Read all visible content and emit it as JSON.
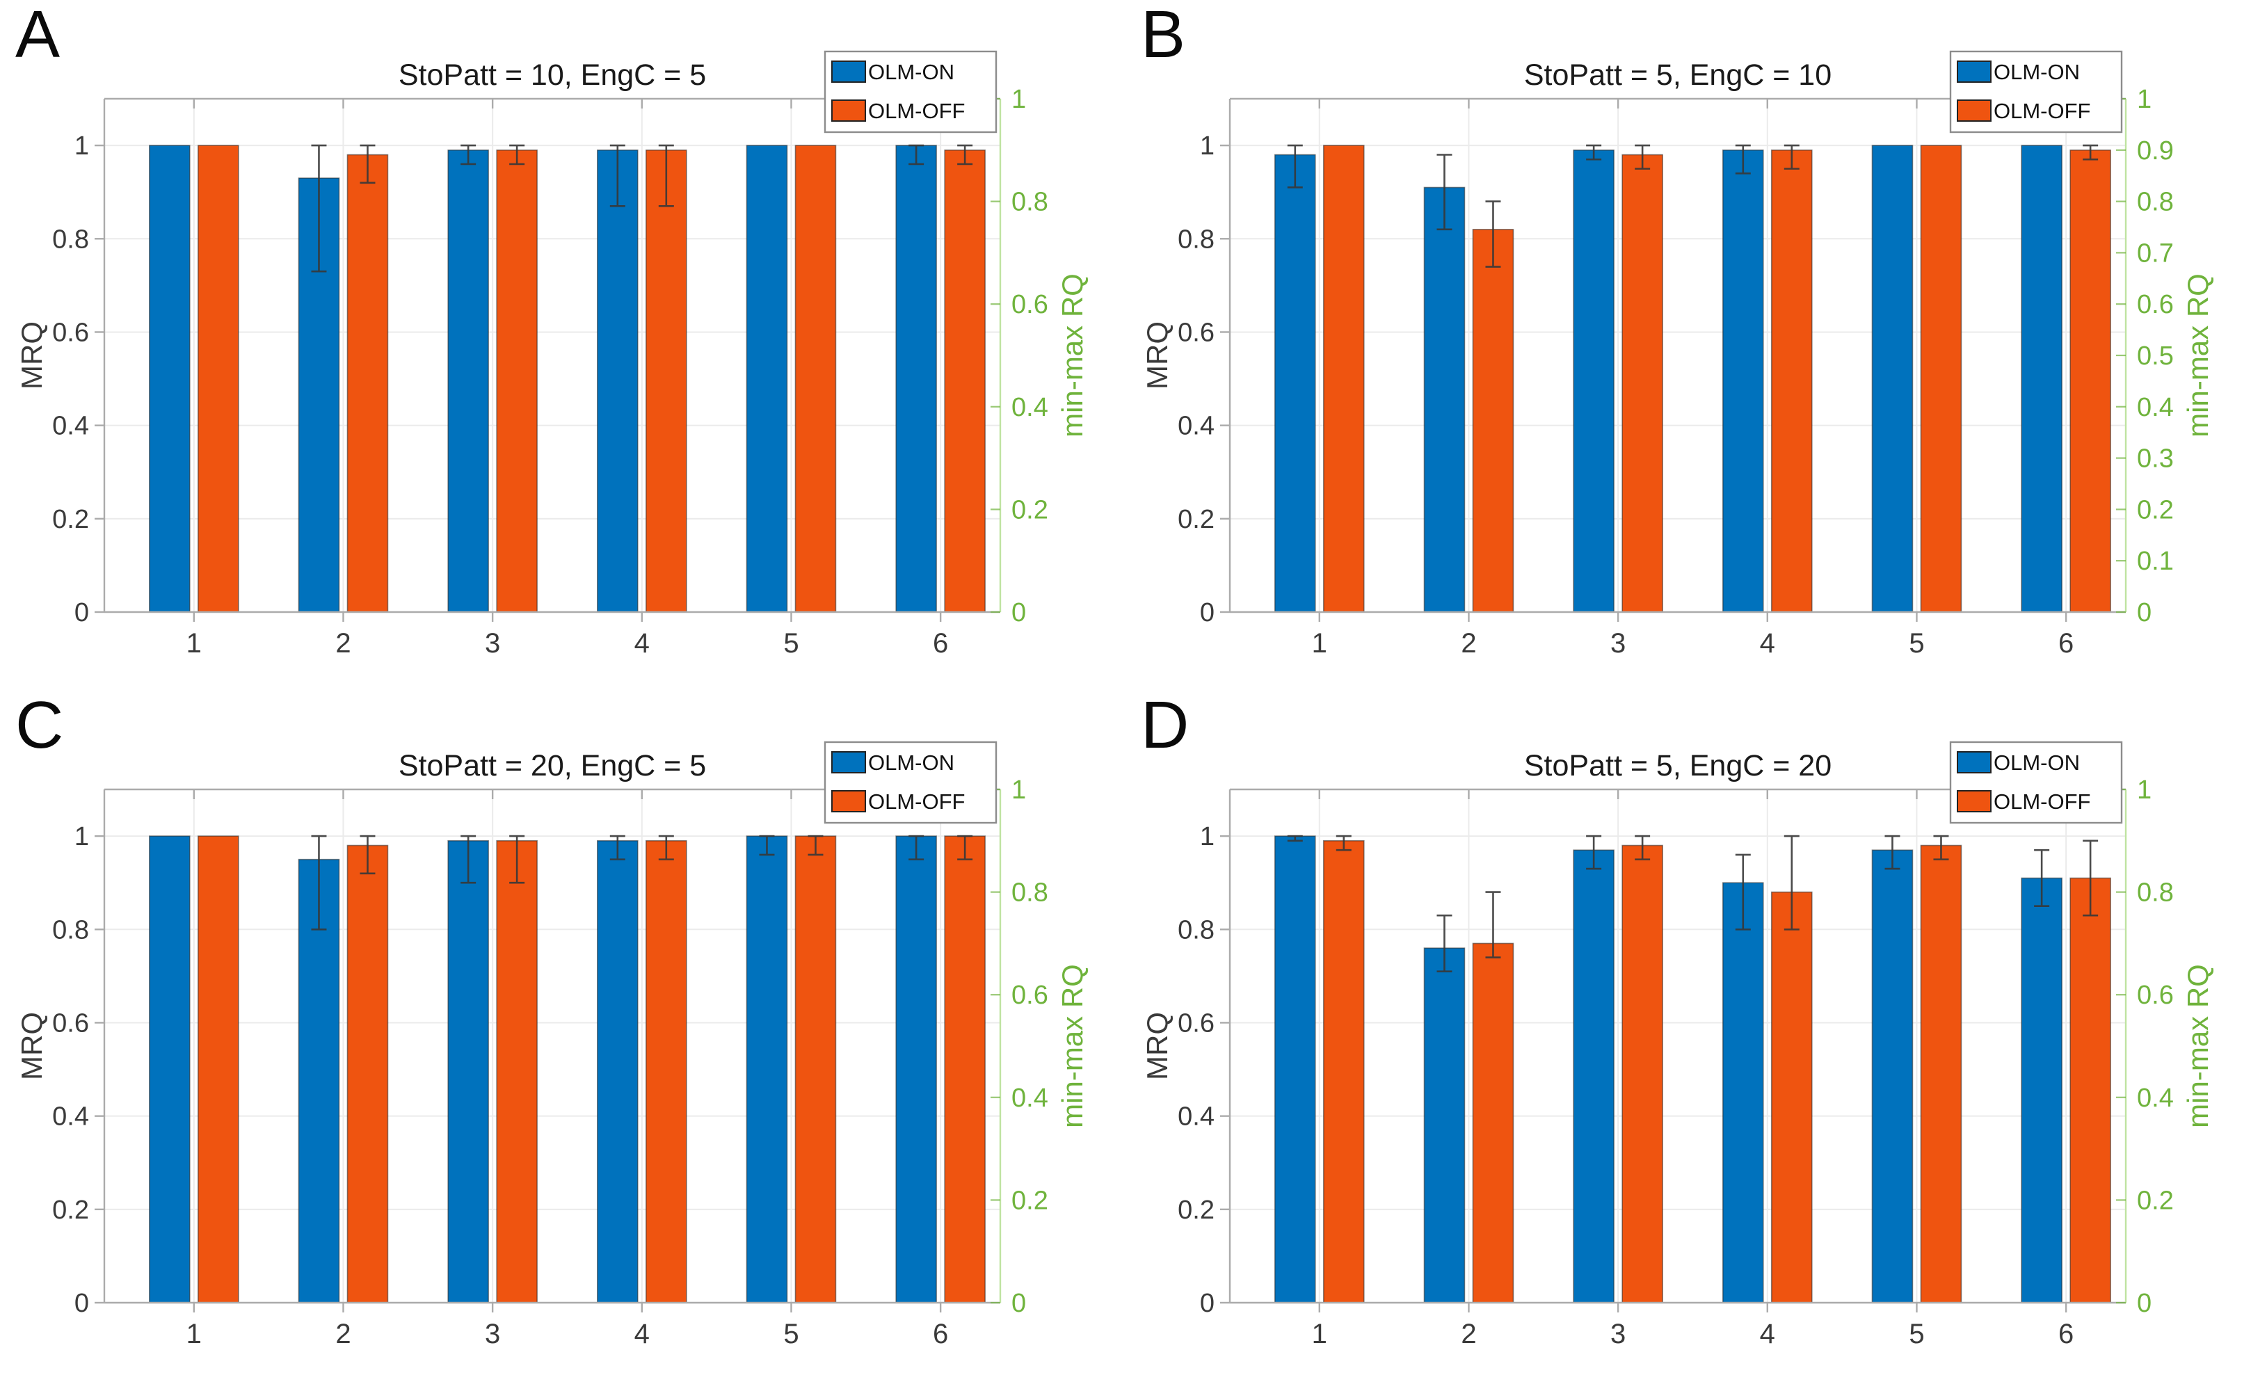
{
  "figure": {
    "background": "#ffffff",
    "panel_letters": [
      "A",
      "B",
      "C",
      "D"
    ]
  },
  "styles": {
    "bar_blue": "#0072BD",
    "bar_orange": "#EF5410",
    "bar_edge": "rgba(40,40,40,0.55)",
    "green_text": "#6FB33C",
    "green_axis_line": "#BFE3A1",
    "frame_color": "#ABABAB",
    "grid_color": "#EBEBEB",
    "tick_text_color": "#3A3A3A",
    "title_color": "#1A1A1A",
    "errorbar_color": "#383838",
    "legend_border": "#8C8C8C",
    "legend_bg": "#FFFFFF"
  },
  "chart_data": [
    {
      "id": "A",
      "letter": "A",
      "type": "bar",
      "title": "StoPatt = 10, EngC = 5",
      "categories": [
        "1",
        "2",
        "3",
        "4",
        "5",
        "6"
      ],
      "left_axis": {
        "label": "MRQ",
        "lim": [
          0,
          1.1
        ],
        "ticks": [
          0,
          0.2,
          0.4,
          0.6,
          0.8,
          1
        ]
      },
      "right_axis": {
        "label": "min-max RQ",
        "lim": [
          0,
          1
        ],
        "ticks": [
          0,
          0.2,
          0.4,
          0.6,
          0.8,
          1
        ]
      },
      "legend": [
        "OLM-ON",
        "OLM-OFF"
      ],
      "grid": true,
      "series": [
        {
          "name": "OLM-ON",
          "color": "#0072BD",
          "values": [
            1.0,
            0.93,
            0.99,
            0.99,
            1.0,
            1.0
          ],
          "err_low": [
            null,
            0.73,
            0.96,
            0.87,
            null,
            0.96
          ],
          "err_high": [
            null,
            1.0,
            1.0,
            1.0,
            null,
            1.0
          ]
        },
        {
          "name": "OLM-OFF",
          "color": "#EF5410",
          "values": [
            1.0,
            0.98,
            0.99,
            0.99,
            1.0,
            0.99
          ],
          "err_low": [
            null,
            0.92,
            0.96,
            0.87,
            null,
            0.96
          ],
          "err_high": [
            null,
            1.0,
            1.0,
            1.0,
            null,
            1.0
          ]
        }
      ]
    },
    {
      "id": "B",
      "letter": "B",
      "type": "bar",
      "title": "StoPatt = 5, EngC = 10",
      "categories": [
        "1",
        "2",
        "3",
        "4",
        "5",
        "6"
      ],
      "left_axis": {
        "label": "MRQ",
        "lim": [
          0,
          1.1
        ],
        "ticks": [
          0,
          0.2,
          0.4,
          0.6,
          0.8,
          1
        ]
      },
      "right_axis": {
        "label": "min-max RQ",
        "lim": [
          0,
          1
        ],
        "ticks": [
          0,
          0.1,
          0.2,
          0.3,
          0.4,
          0.5,
          0.6,
          0.7,
          0.8,
          0.9,
          1
        ]
      },
      "legend": [
        "OLM-ON",
        "OLM-OFF"
      ],
      "grid": true,
      "series": [
        {
          "name": "OLM-ON",
          "color": "#0072BD",
          "values": [
            0.98,
            0.91,
            0.99,
            0.99,
            1.0,
            1.0
          ],
          "err_low": [
            0.91,
            0.82,
            0.97,
            0.94,
            null,
            null
          ],
          "err_high": [
            1.0,
            0.98,
            1.0,
            1.0,
            null,
            null
          ]
        },
        {
          "name": "OLM-OFF",
          "color": "#EF5410",
          "values": [
            1.0,
            0.82,
            0.98,
            0.99,
            1.0,
            0.99
          ],
          "err_low": [
            null,
            0.74,
            0.95,
            0.95,
            null,
            0.97
          ],
          "err_high": [
            null,
            0.88,
            1.0,
            1.0,
            null,
            1.0
          ]
        }
      ]
    },
    {
      "id": "C",
      "letter": "C",
      "type": "bar",
      "title": "StoPatt = 20, EngC = 5",
      "categories": [
        "1",
        "2",
        "3",
        "4",
        "5",
        "6"
      ],
      "left_axis": {
        "label": "MRQ",
        "lim": [
          0,
          1.1
        ],
        "ticks": [
          0,
          0.2,
          0.4,
          0.6,
          0.8,
          1
        ]
      },
      "right_axis": {
        "label": "min-max RQ",
        "lim": [
          0,
          1
        ],
        "ticks": [
          0,
          0.2,
          0.4,
          0.6,
          0.8,
          1
        ]
      },
      "legend": [
        "OLM-ON",
        "OLM-OFF"
      ],
      "grid": true,
      "series": [
        {
          "name": "OLM-ON",
          "color": "#0072BD",
          "values": [
            1.0,
            0.95,
            0.99,
            0.99,
            1.0,
            1.0
          ],
          "err_low": [
            null,
            0.8,
            0.9,
            0.95,
            0.96,
            0.95
          ],
          "err_high": [
            null,
            1.0,
            1.0,
            1.0,
            1.0,
            1.0
          ]
        },
        {
          "name": "OLM-OFF",
          "color": "#EF5410",
          "values": [
            1.0,
            0.98,
            0.99,
            0.99,
            1.0,
            1.0
          ],
          "err_low": [
            null,
            0.92,
            0.9,
            0.95,
            0.96,
            0.95
          ],
          "err_high": [
            null,
            1.0,
            1.0,
            1.0,
            1.0,
            1.0
          ]
        }
      ]
    },
    {
      "id": "D",
      "letter": "D",
      "type": "bar",
      "title": "StoPatt = 5, EngC = 20",
      "categories": [
        "1",
        "2",
        "3",
        "4",
        "5",
        "6"
      ],
      "left_axis": {
        "label": "MRQ",
        "lim": [
          0,
          1.1
        ],
        "ticks": [
          0,
          0.2,
          0.4,
          0.6,
          0.8,
          1
        ]
      },
      "right_axis": {
        "label": "min-max RQ",
        "lim": [
          0,
          1
        ],
        "ticks": [
          0,
          0.2,
          0.4,
          0.6,
          0.8,
          1
        ]
      },
      "legend": [
        "OLM-ON",
        "OLM-OFF"
      ],
      "grid": true,
      "series": [
        {
          "name": "OLM-ON",
          "color": "#0072BD",
          "values": [
            1.0,
            0.76,
            0.97,
            0.9,
            0.97,
            0.91
          ],
          "err_low": [
            0.99,
            0.71,
            0.93,
            0.8,
            0.93,
            0.85
          ],
          "err_high": [
            1.0,
            0.83,
            1.0,
            0.96,
            1.0,
            0.97
          ]
        },
        {
          "name": "OLM-OFF",
          "color": "#EF5410",
          "values": [
            0.99,
            0.77,
            0.98,
            0.88,
            0.98,
            0.91
          ],
          "err_low": [
            0.97,
            0.74,
            0.95,
            0.8,
            0.95,
            0.83
          ],
          "err_high": [
            1.0,
            0.88,
            1.0,
            1.0,
            1.0,
            0.99
          ]
        }
      ]
    }
  ]
}
